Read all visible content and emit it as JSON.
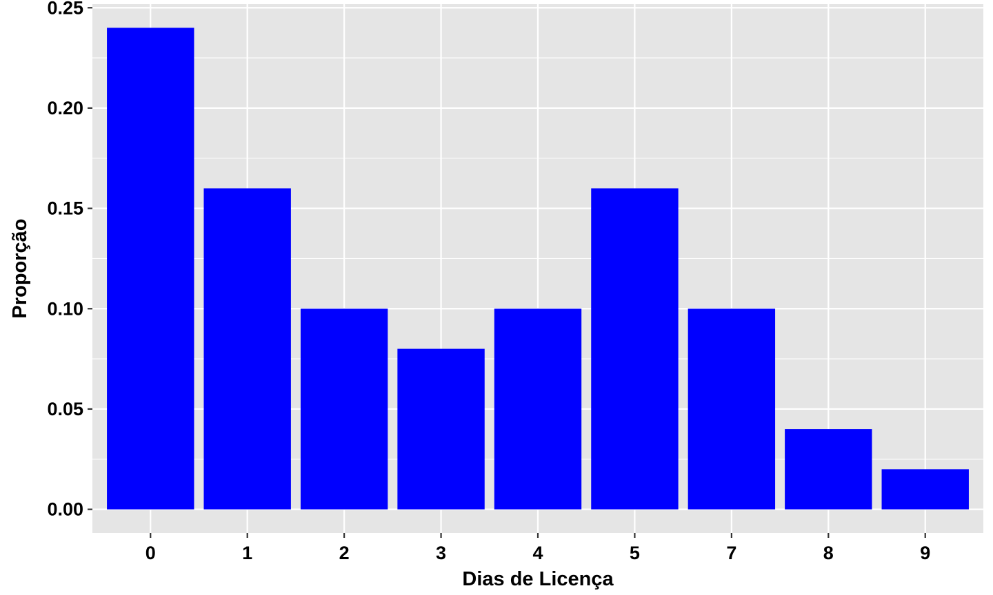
{
  "chart_data": {
    "type": "bar",
    "title": "",
    "xlabel": "Dias de Licença",
    "ylabel": "Proporção",
    "categories": [
      "0",
      "1",
      "2",
      "3",
      "4",
      "5",
      "7",
      "8",
      "9"
    ],
    "values": [
      0.24,
      0.16,
      0.1,
      0.08,
      0.1,
      0.16,
      0.1,
      0.04,
      0.02
    ],
    "ylim": [
      -0.0118,
      0.2518
    ],
    "yticks": [
      0.0,
      0.05,
      0.1,
      0.15,
      0.2,
      0.25
    ],
    "ytick_labels": [
      "0.00",
      "0.05",
      "0.10",
      "0.15",
      "0.20",
      "0.25"
    ],
    "grid": true,
    "legend": "none",
    "colors": {
      "bar": "#0000ff",
      "panel_background": "#e5e5e5",
      "grid": "#ffffff",
      "axis_tick": "#333333"
    }
  }
}
